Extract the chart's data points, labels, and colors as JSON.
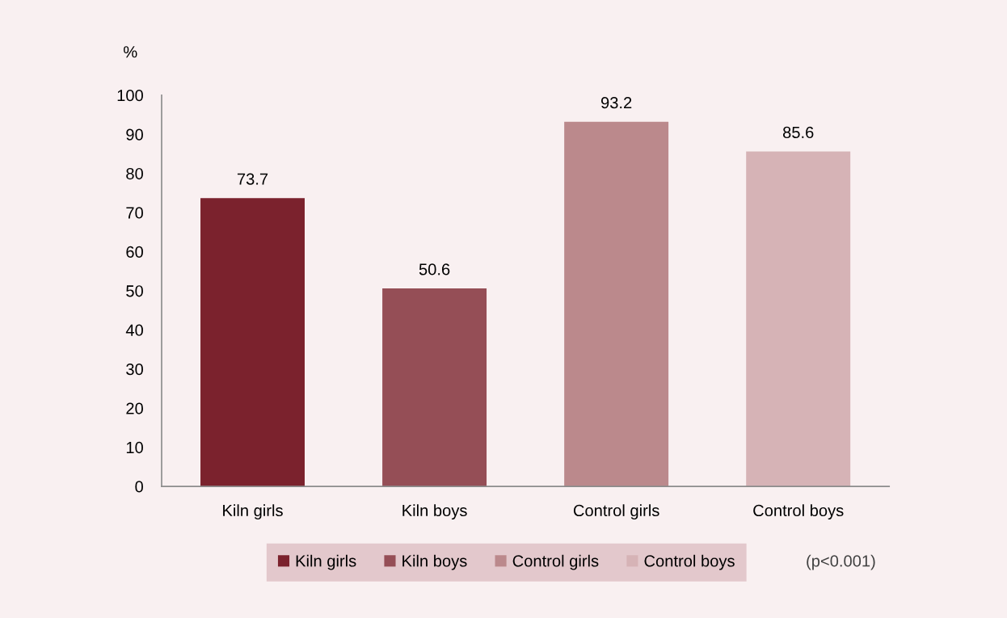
{
  "chart_data": {
    "type": "bar",
    "ylabel": "%",
    "categories": [
      "Kiln girls",
      "Kiln boys",
      "Control girls",
      "Control boys"
    ],
    "series": [
      {
        "name": "Kiln girls",
        "color": "#7b222d",
        "values": [
          73.7,
          null,
          null,
          null
        ]
      },
      {
        "name": "Kiln boys",
        "color": "#954e56",
        "values": [
          null,
          50.6,
          null,
          null
        ]
      },
      {
        "name": "Control girls",
        "color": "#bb898c",
        "values": [
          null,
          null,
          93.2,
          null
        ]
      },
      {
        "name": "Control boys",
        "color": "#d6b3b6",
        "values": [
          null,
          null,
          null,
          85.6
        ]
      }
    ],
    "stacked": true,
    "ylim": [
      0,
      100
    ],
    "yticks": [
      0,
      10,
      20,
      30,
      40,
      50,
      60,
      70,
      80,
      90,
      100
    ],
    "data_labels": true,
    "legend": "bottom",
    "grid": false,
    "annotations": [
      "(p<0.001)"
    ]
  }
}
